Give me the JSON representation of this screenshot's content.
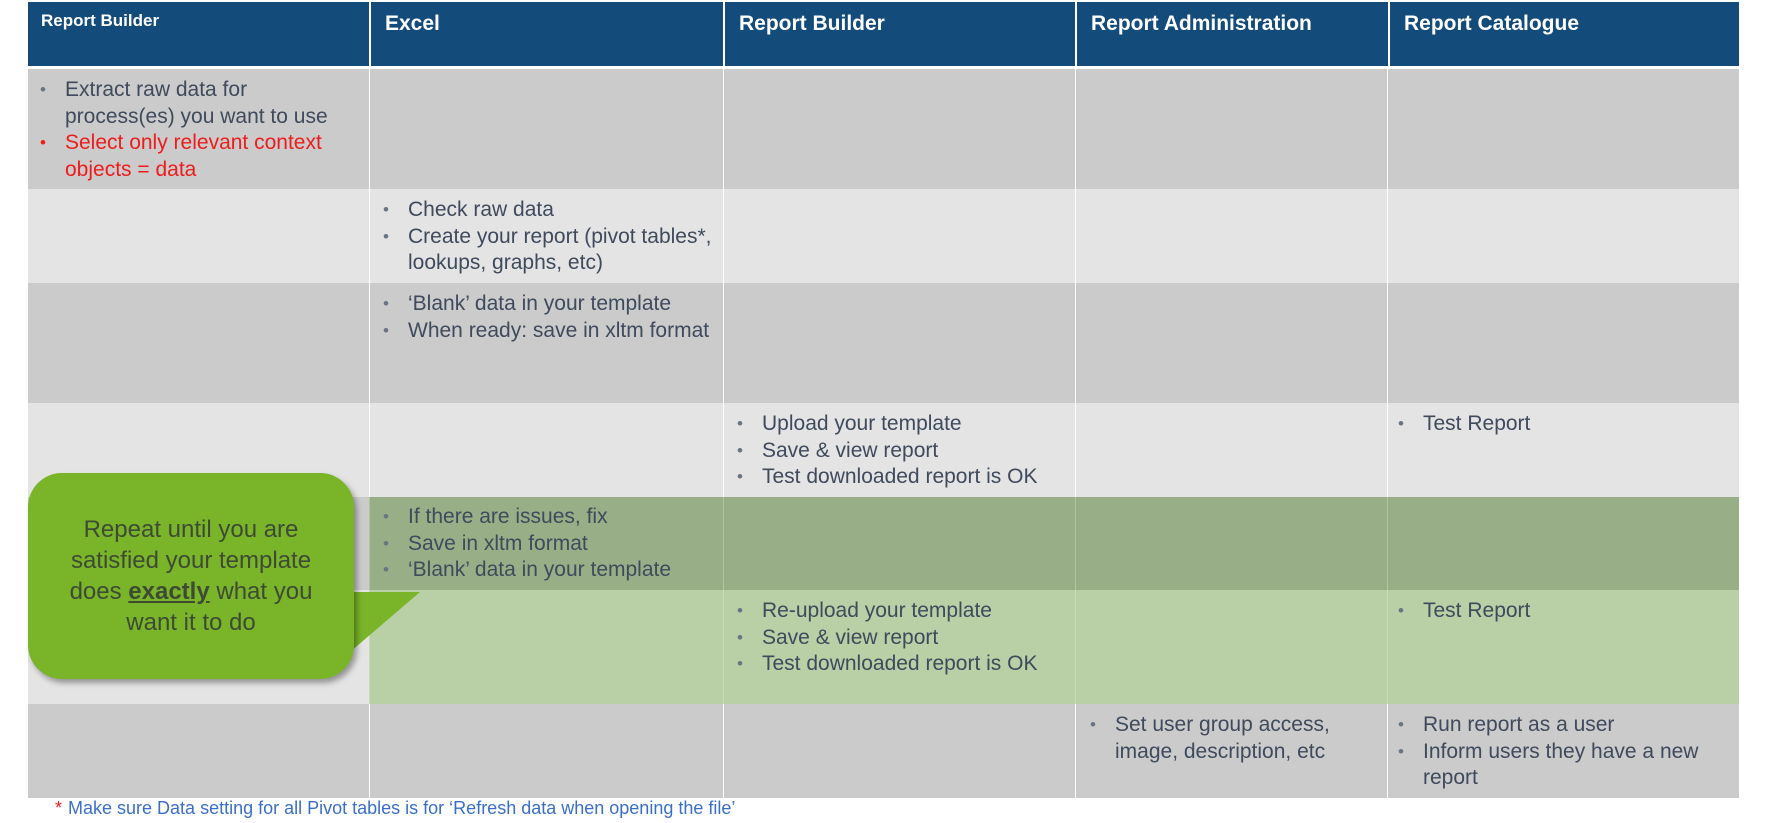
{
  "header": {
    "col1": "Report Builder",
    "col2": "Excel",
    "col3": "Report Builder",
    "col4": "Report Administration",
    "col5": "Report Catalogue"
  },
  "rows": {
    "r1": {
      "col1": [
        "Extract raw data for process(es) you want to use",
        "Select only relevant context objects = data"
      ]
    },
    "r2": {
      "col2": [
        "Check raw data",
        "Create your report (pivot tables*, lookups, graphs, etc)"
      ]
    },
    "r3": {
      "col2": [
        "‘Blank’ data in your template",
        "When ready: save in xltm format"
      ]
    },
    "r4": {
      "col3": [
        "Upload your template",
        "Save & view report",
        "Test downloaded report is OK"
      ],
      "col5": [
        "Test Report"
      ]
    },
    "r5": {
      "col2": [
        "If there are issues, fix",
        "Save in xltm format",
        "‘Blank’ data in your template"
      ]
    },
    "r6": {
      "col3": [
        "Re-upload your template",
        "Save & view report",
        "Test downloaded report is OK"
      ],
      "col5": [
        "Test Report"
      ]
    },
    "r7": {
      "col4": [
        "Set user group access, image,  description, etc"
      ],
      "col5": [
        "Run report as a user",
        "Inform users they have a new report"
      ]
    }
  },
  "callout": {
    "before": "Repeat until you are satisfied your template does ",
    "emphasis": "exactly",
    "after": " what you want it to do"
  },
  "footnote": {
    "marker": "*",
    "text": "Make sure Data setting for all Pivot tables is for ‘Refresh data when opening the file’"
  },
  "colors": {
    "header_bg": "#134b7a",
    "row_dark": "#cbcbcb",
    "row_light": "#e4e4e4",
    "callout_green": "#7ab429",
    "alert_red": "#ee1c1c",
    "footnote_blue": "#3a6fc9"
  },
  "bullet_glyph": "•"
}
